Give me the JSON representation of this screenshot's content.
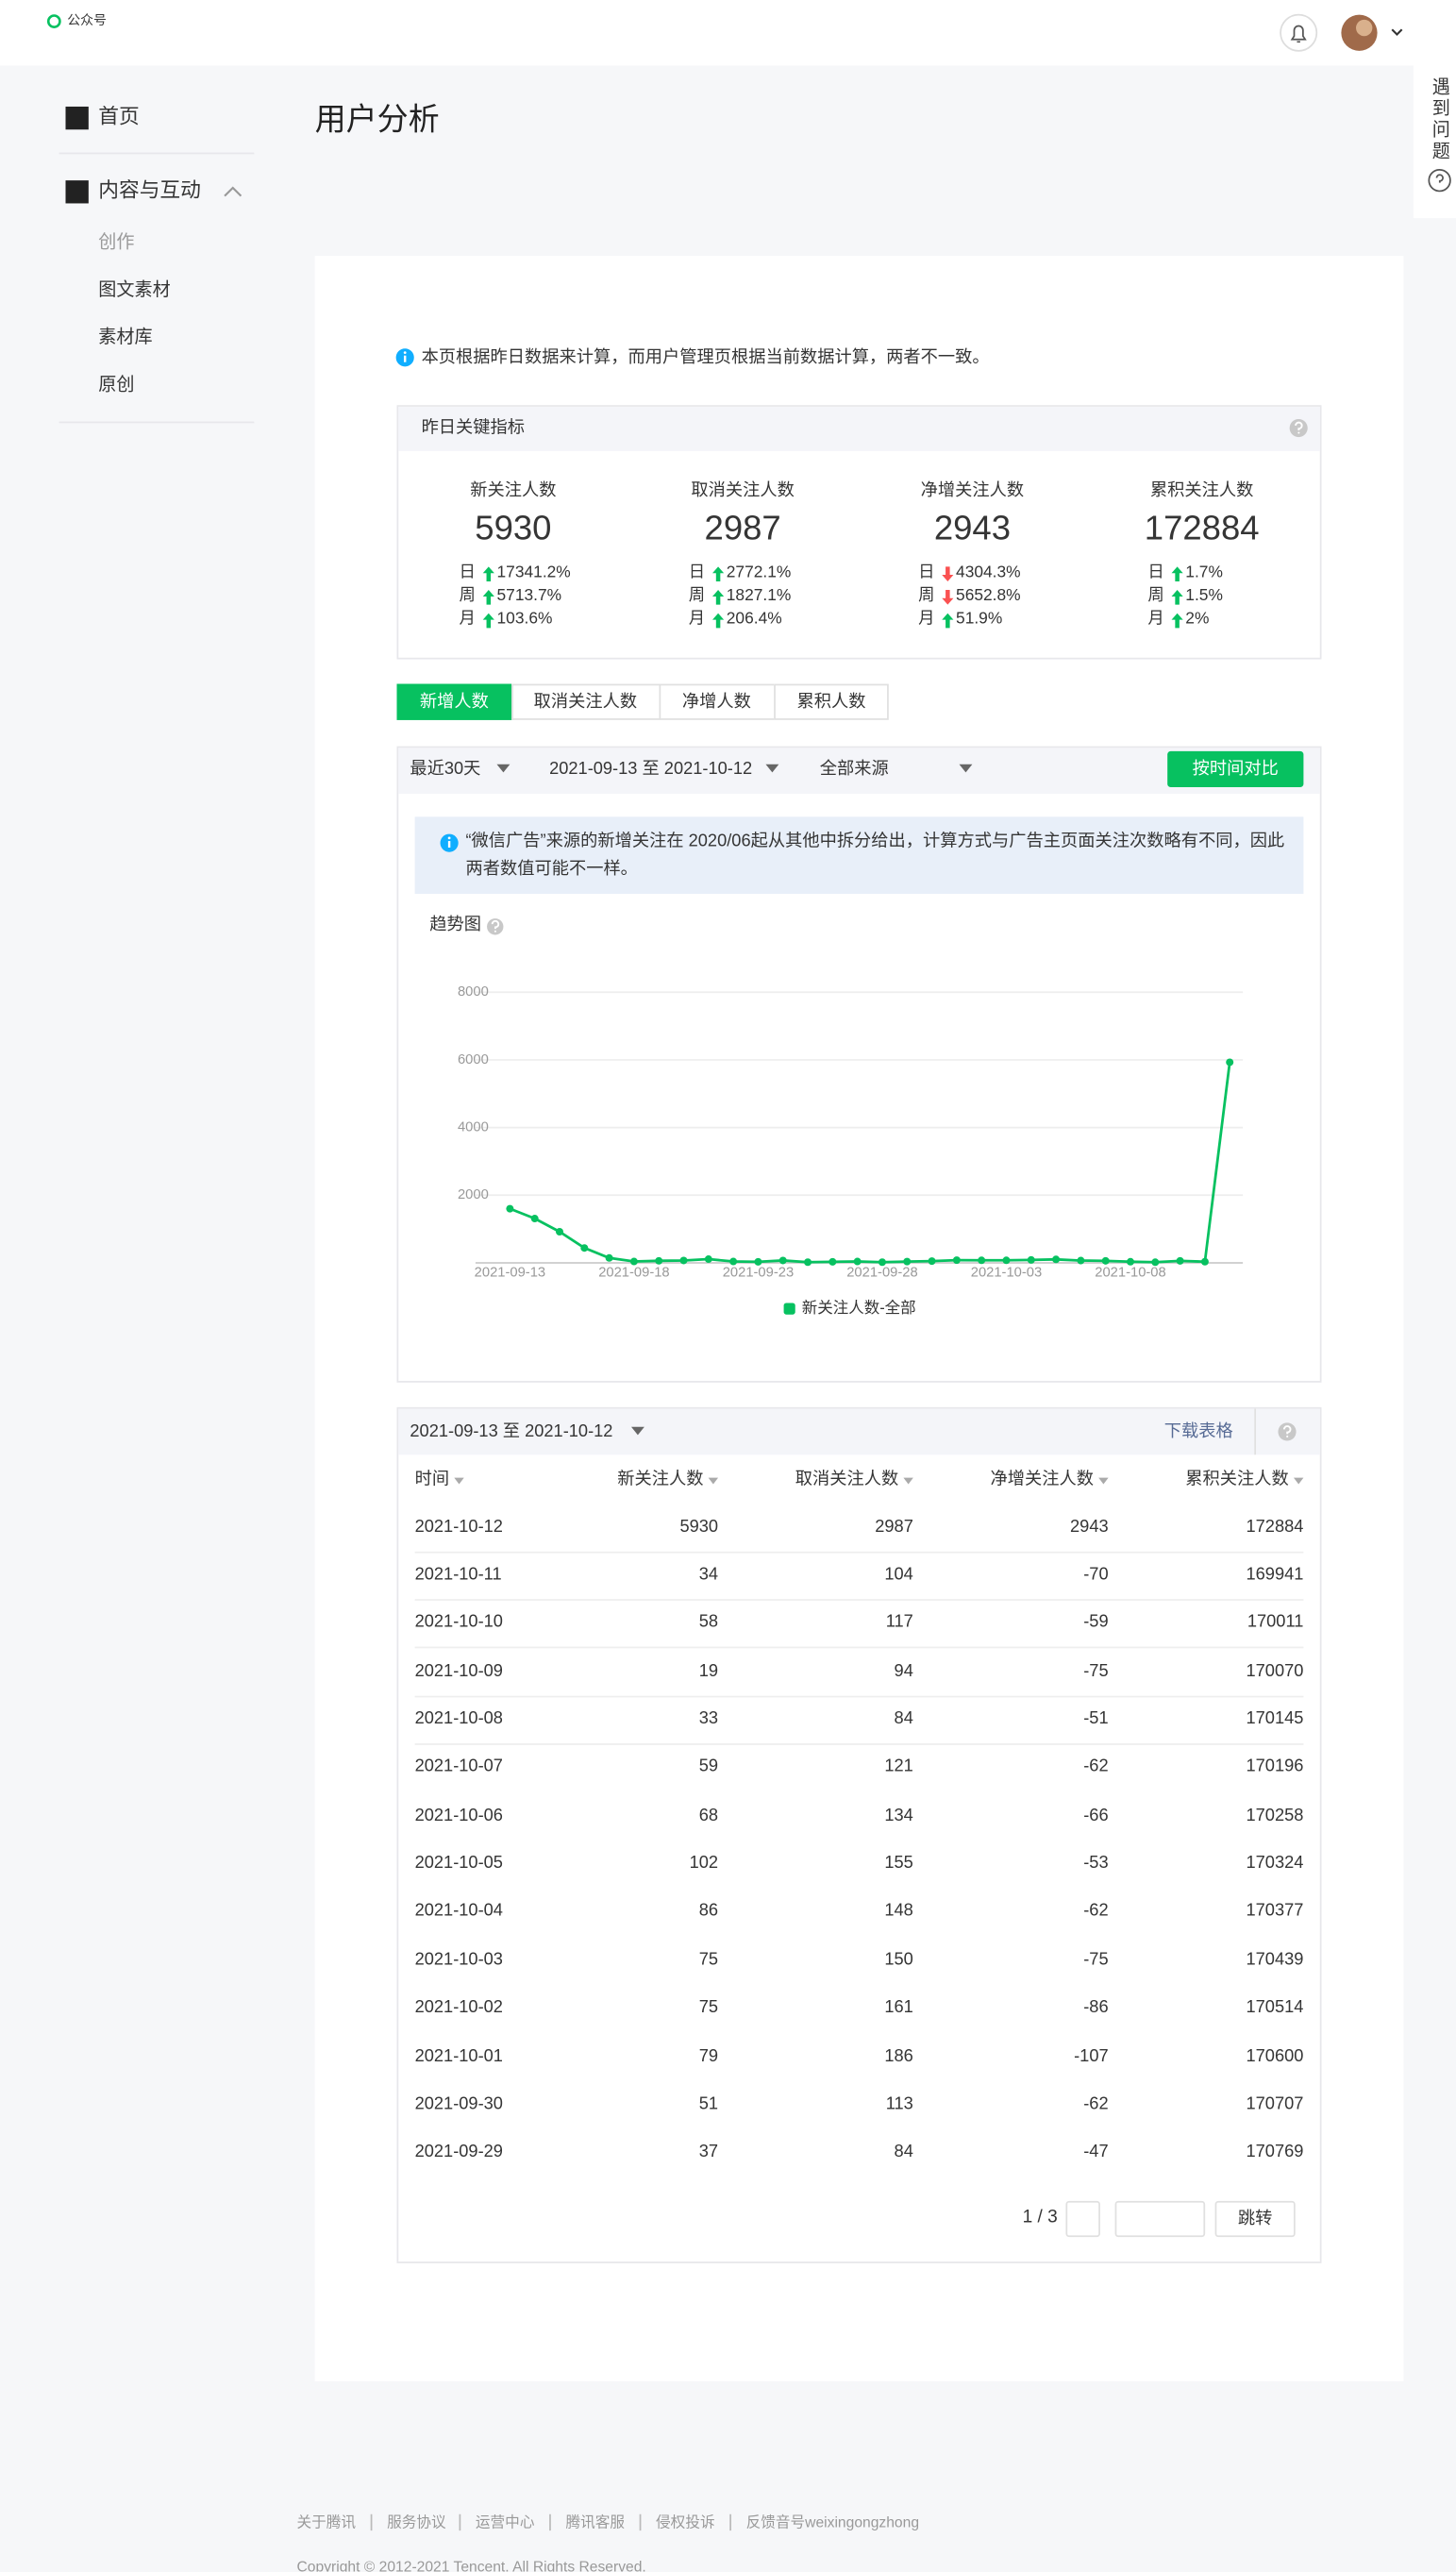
{
  "header": {
    "logo": "公众号"
  },
  "help": "遇到问题",
  "sidebar": {
    "items": [
      "首页",
      "内容与互动"
    ],
    "subitems": [
      "创作",
      "图文素材",
      "素材库",
      "原创"
    ]
  },
  "page_title": "用户分析",
  "notice": "本页根据昨日数据来计算，而用户管理页根据当前数据计算，两者不一致。",
  "key_metrics": {
    "title": "昨日关键指标",
    "cards": [
      {
        "name": "新关注人数",
        "value": 5930,
        "changes": [
          {
            "period": "日",
            "trend": "up",
            "label": "17341.2%"
          },
          {
            "period": "周",
            "trend": "up",
            "label": "5713.7%"
          },
          {
            "period": "月",
            "trend": "up",
            "label": "103.6%"
          }
        ]
      },
      {
        "name": "取消关注人数",
        "value": 2987,
        "changes": [
          {
            "period": "日",
            "trend": "up",
            "label": "2772.1%"
          },
          {
            "period": "周",
            "trend": "up",
            "label": "1827.1%"
          },
          {
            "period": "月",
            "trend": "up",
            "label": "206.4%"
          }
        ]
      },
      {
        "name": "净增关注人数",
        "value": 2943,
        "changes": [
          {
            "period": "日",
            "trend": "down",
            "label": "4304.3%"
          },
          {
            "period": "周",
            "trend": "down",
            "label": "5652.8%"
          },
          {
            "period": "月",
            "trend": "up",
            "label": "51.9%"
          }
        ]
      },
      {
        "name": "累积关注人数",
        "value": 172884,
        "changes": [
          {
            "period": "日",
            "trend": "up",
            "label": "1.7%"
          },
          {
            "period": "周",
            "trend": "up",
            "label": "1.5%"
          },
          {
            "period": "月",
            "trend": "up",
            "label": "2%"
          }
        ]
      }
    ]
  },
  "tabs": {
    "items": [
      "新增人数",
      "取消关注人数",
      "净增人数",
      "累积人数"
    ],
    "active": 0
  },
  "filters": {
    "range": "最近30天",
    "dates": "2021-09-13 至 2021-10-12",
    "source": "全部来源",
    "compare": "按时间对比"
  },
  "ad_notice": "“微信广告”来源的新增关注在 2020/06起从其他中拆分给出，计算方式与广告主页面关注次数略有不同，因此两者数值可能不一样。",
  "chart_data": {
    "type": "line",
    "title": "趋势图",
    "categories": [
      "2021-09-13",
      null,
      null,
      null,
      null,
      "2021-09-18",
      null,
      null,
      null,
      null,
      "2021-09-23",
      null,
      null,
      null,
      null,
      "2021-09-28",
      null,
      null,
      null,
      null,
      "2021-10-03",
      null,
      null,
      null,
      null,
      "2021-10-08",
      null,
      null,
      null,
      null
    ],
    "series": [
      {
        "name": "新关注人数-全部",
        "color": "#07c160",
        "values": [
          1600,
          1310,
          920,
          440,
          145,
          40,
          60,
          70,
          110,
          40,
          30,
          70,
          20,
          30,
          40,
          20,
          37,
          51,
          79,
          75,
          75,
          86,
          102,
          68,
          59,
          33,
          19,
          58,
          34,
          5930
        ]
      }
    ],
    "ylim": [
      0,
      8000
    ],
    "yticks": [
      2000,
      4000,
      6000,
      8000
    ],
    "grid": true
  },
  "table": {
    "date_range": "2021-09-13 至 2021-10-12",
    "download": "下载表格",
    "columns": [
      "时间",
      "新关注人数",
      "取消关注人数",
      "净增关注人数",
      "累积关注人数"
    ],
    "rows": [
      [
        "2021-10-12",
        5930,
        2987,
        2943,
        172884
      ],
      [
        "2021-10-11",
        34,
        104,
        -70,
        169941
      ],
      [
        "2021-10-10",
        58,
        117,
        -59,
        170011
      ],
      [
        "2021-10-09",
        19,
        94,
        -75,
        170070
      ],
      [
        "2021-10-08",
        33,
        84,
        -51,
        170145
      ],
      [
        "2021-10-07",
        59,
        121,
        -62,
        170196
      ],
      [
        "2021-10-06",
        68,
        134,
        -66,
        170258
      ],
      [
        "2021-10-05",
        102,
        155,
        -53,
        170324
      ],
      [
        "2021-10-04",
        86,
        148,
        -62,
        170377
      ],
      [
        "2021-10-03",
        75,
        150,
        -75,
        170439
      ],
      [
        "2021-10-02",
        75,
        161,
        -86,
        170514
      ],
      [
        "2021-10-01",
        79,
        186,
        -107,
        170600
      ],
      [
        "2021-09-30",
        51,
        113,
        -62,
        170707
      ],
      [
        "2021-09-29",
        37,
        84,
        -47,
        170769
      ]
    ]
  },
  "pagination": {
    "page": "1 / 3",
    "jump": "跳转"
  },
  "footer": {
    "links": [
      "关于腾讯",
      "服务协议",
      "运营中心",
      "腾讯客服",
      "侵权投诉",
      "反馈音号weixingongzhong"
    ],
    "copyright": "Copyright © 2012-2021 Tencent. All Rights Reserved."
  }
}
